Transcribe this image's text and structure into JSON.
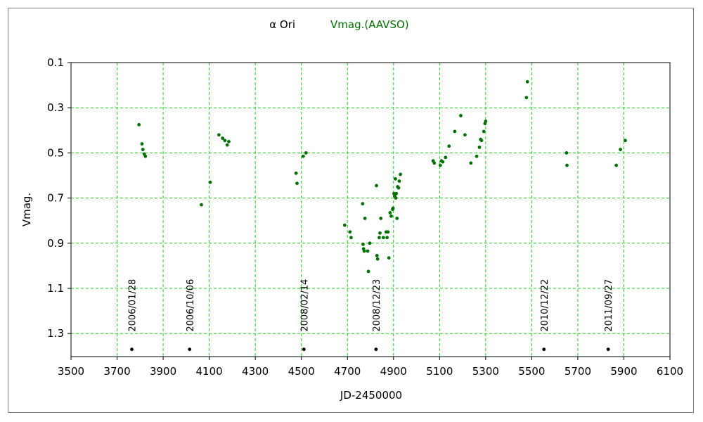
{
  "chart_data": {
    "type": "scatter",
    "title_object": "α Ori",
    "title_series": "Vmag.(AAVSO)",
    "xlabel": "JD-2450000",
    "ylabel": "Vmag.",
    "xlim": [
      3500,
      6100
    ],
    "ylim": [
      0.1,
      1.4
    ],
    "y_inverted": true,
    "x_ticks": [
      3500,
      3700,
      3900,
      4100,
      4300,
      4500,
      4700,
      4900,
      5100,
      5300,
      5500,
      5700,
      5900,
      6100
    ],
    "x_tick_labels": [
      "3500",
      "3700",
      "3900",
      "4100",
      "4300",
      "4500",
      "4700",
      "4900",
      "5100",
      "5300",
      "5500",
      "5700",
      "5900",
      "6100"
    ],
    "y_ticks": [
      0.1,
      0.3,
      0.5,
      0.7,
      0.9,
      1.1,
      1.3
    ],
    "y_tick_labels": [
      "0.1",
      "0.3",
      "0.5",
      "0.7",
      "0.9",
      "1.1",
      "1.3"
    ],
    "grid": true,
    "colors": {
      "series": "#007000",
      "grid": "#22cc22",
      "date_marker": "#000000",
      "title_object": "#000000",
      "title_series": "#007000"
    },
    "series": [
      {
        "name": "Vmag.(AAVSO)",
        "points": [
          [
            3795,
            0.375
          ],
          [
            3808,
            0.46
          ],
          [
            3812,
            0.485
          ],
          [
            3818,
            0.505
          ],
          [
            3823,
            0.515
          ],
          [
            4066,
            0.73
          ],
          [
            4104,
            0.63
          ],
          [
            4142,
            0.42
          ],
          [
            4158,
            0.435
          ],
          [
            4168,
            0.445
          ],
          [
            4178,
            0.465
          ],
          [
            4185,
            0.45
          ],
          [
            4477,
            0.59
          ],
          [
            4481,
            0.635
          ],
          [
            4508,
            0.515
          ],
          [
            4520,
            0.5
          ],
          [
            4688,
            0.82
          ],
          [
            4711,
            0.85
          ],
          [
            4716,
            0.875
          ],
          [
            4766,
            0.725
          ],
          [
            4768,
            0.905
          ],
          [
            4770,
            0.925
          ],
          [
            4773,
            0.935
          ],
          [
            4776,
            0.79
          ],
          [
            4788,
            0.935
          ],
          [
            4791,
            1.025
          ],
          [
            4797,
            0.9
          ],
          [
            4826,
            0.645
          ],
          [
            4828,
            0.955
          ],
          [
            4831,
            0.97
          ],
          [
            4838,
            0.875
          ],
          [
            4841,
            0.855
          ],
          [
            4845,
            0.79
          ],
          [
            4856,
            0.875
          ],
          [
            4868,
            0.85
          ],
          [
            4872,
            0.875
          ],
          [
            4876,
            0.85
          ],
          [
            4880,
            0.965
          ],
          [
            4885,
            0.765
          ],
          [
            4890,
            0.78
          ],
          [
            4896,
            0.75
          ],
          [
            4898,
            0.745
          ],
          [
            4902,
            0.68
          ],
          [
            4905,
            0.69
          ],
          [
            4908,
            0.615
          ],
          [
            4910,
            0.7
          ],
          [
            4912,
            0.68
          ],
          [
            4915,
            0.79
          ],
          [
            4918,
            0.65
          ],
          [
            4922,
            0.655
          ],
          [
            4925,
            0.625
          ],
          [
            4930,
            0.595
          ],
          [
            5072,
            0.535
          ],
          [
            5077,
            0.545
          ],
          [
            5103,
            0.555
          ],
          [
            5108,
            0.535
          ],
          [
            5114,
            0.54
          ],
          [
            5126,
            0.52
          ],
          [
            5141,
            0.47
          ],
          [
            5166,
            0.405
          ],
          [
            5192,
            0.335
          ],
          [
            5210,
            0.42
          ],
          [
            5236,
            0.545
          ],
          [
            5261,
            0.515
          ],
          [
            5273,
            0.475
          ],
          [
            5278,
            0.44
          ],
          [
            5282,
            0.445
          ],
          [
            5292,
            0.405
          ],
          [
            5297,
            0.37
          ],
          [
            5300,
            0.36
          ],
          [
            5477,
            0.255
          ],
          [
            5481,
            0.185
          ],
          [
            5651,
            0.5
          ],
          [
            5653,
            0.555
          ],
          [
            5867,
            0.555
          ],
          [
            5885,
            0.485
          ],
          [
            5906,
            0.445
          ]
        ]
      }
    ],
    "date_markers": [
      {
        "label": "2006/01/28",
        "x": 3764,
        "y": 1.37
      },
      {
        "label": "2006/10/06",
        "x": 4015,
        "y": 1.37
      },
      {
        "label": "2008/02/14",
        "x": 4511,
        "y": 1.37
      },
      {
        "label": "2008/12/23",
        "x": 4824,
        "y": 1.37
      },
      {
        "label": "2010/12/22",
        "x": 5553,
        "y": 1.37
      },
      {
        "label": "2011/09/27",
        "x": 5832,
        "y": 1.37
      }
    ]
  }
}
